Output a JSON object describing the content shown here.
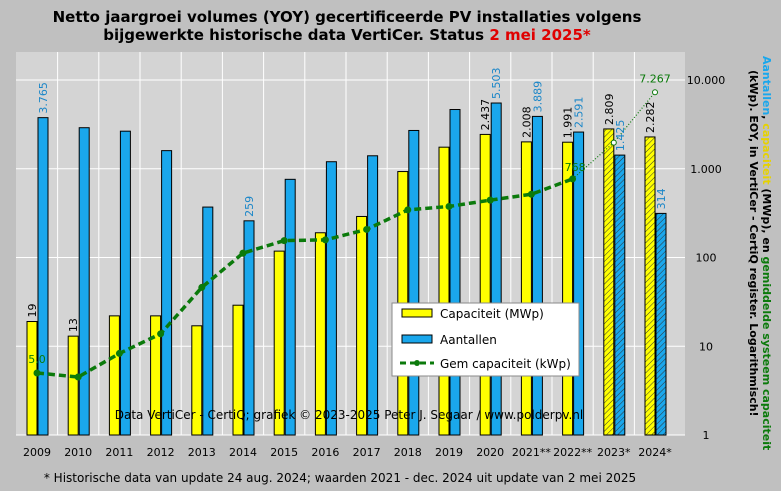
{
  "colors": {
    "capacity": "#ffff00",
    "count": "#1aa7ec",
    "avg": "#0b7a0b",
    "plot_bg": "#d4d4d4",
    "accent_red": "#e00000",
    "side_blue": "#1aa7ec",
    "side_yellow": "#e6d200",
    "side_green": "#0b7a0b"
  },
  "title": {
    "line1": "Netto jaargroei volumes (YOY) gecertificeerde PV installaties volgens",
    "line2_prefix": "bijgewerkte historische data VertiCer. Status ",
    "line2_date": "2 mei 2025*"
  },
  "side_label": {
    "aantallen": "Aantallen",
    "sep1": ", ",
    "capaciteit": "capaciteit",
    "mid": " (MWp), en ",
    "gemiddelde": "gemiddelde systeem capaciteit",
    "line2": "(kWp). EOY, in VertiCer - CertiQ register. Logarithmisch!"
  },
  "credit": "Data VertiCer - CertiQ; grafiek © 2023-2025 Peter J. Segaar / www.polderpv.nl",
  "footnote": "* Historische data van update 24 aug. 2024; waarden 2021 - dec. 2024 uit update van 2 mei 2025",
  "legend": {
    "capacity": "Capaciteit (MWp)",
    "count": "Aantallen",
    "avg": "Gem capaciteit (kWp)"
  },
  "chart_data": {
    "type": "bar",
    "yscale": "log",
    "ylim": [
      1,
      10000
    ],
    "yticks": [
      {
        "v": 1,
        "label": "1"
      },
      {
        "v": 10,
        "label": "10"
      },
      {
        "v": 100,
        "label": "100"
      },
      {
        "v": 1000,
        "label": "1.000"
      },
      {
        "v": 10000,
        "label": "10.000"
      }
    ],
    "categories": [
      "2009",
      "2010",
      "2011",
      "2012",
      "2013",
      "2014",
      "2015",
      "2016",
      "2017",
      "2018",
      "2019",
      "2020",
      "2021**",
      "2022**",
      "2023*",
      "2024*"
    ],
    "hatched_from_index": 14,
    "series": [
      {
        "name": "Capaciteit (MWp)",
        "kind": "bar",
        "values": [
          19,
          13,
          22,
          22,
          17,
          29,
          118,
          190,
          290,
          930,
          1750,
          2437,
          2008,
          1991,
          2809,
          2282
        ],
        "labels": [
          "19",
          "13",
          "",
          "",
          "",
          "",
          "",
          "",
          "",
          "",
          "",
          "2.437",
          "2.008",
          "1.991",
          "2.809",
          "2.282"
        ]
      },
      {
        "name": "Aantallen",
        "kind": "bar",
        "values": [
          3765,
          2900,
          2650,
          1600,
          370,
          259,
          760,
          1200,
          1400,
          2700,
          4650,
          5503,
          3889,
          2591,
          1425,
          314
        ],
        "labels": [
          "3.765",
          "",
          "",
          "",
          "",
          "259",
          "",
          "",
          "",
          "",
          "",
          "5.503",
          "3.889",
          "2.591",
          "1.425",
          "314"
        ]
      },
      {
        "name": "Gem capaciteit (kWp)",
        "kind": "line",
        "values": [
          5.0,
          4.5,
          8.3,
          13.8,
          46,
          112,
          155,
          158,
          207,
          344,
          376,
          443,
          516,
          768,
          null,
          null
        ],
        "labels": [
          "5,0",
          "",
          "",
          "",
          "",
          "",
          "",
          "",
          "",
          "",
          "",
          "",
          "",
          "768",
          "",
          ""
        ]
      },
      {
        "name": "",
        "kind": "dotted-extension",
        "values": [
          null,
          null,
          null,
          null,
          null,
          null,
          null,
          null,
          null,
          null,
          null,
          null,
          null,
          768,
          1971,
          7267
        ],
        "labels": [
          "",
          "",
          "",
          "",
          "",
          "",
          "",
          "",
          "",
          "",
          "",
          "",
          "",
          "",
          "",
          "7.267"
        ]
      }
    ]
  }
}
